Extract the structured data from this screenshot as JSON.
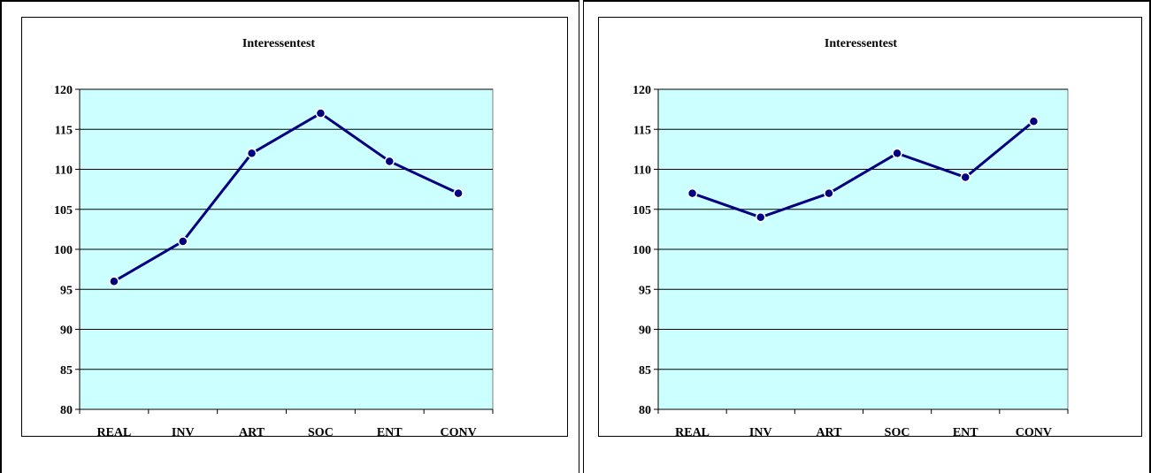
{
  "colors": {
    "plot_background": "#ccffff",
    "line": "#000080",
    "marker_fill": "#000080",
    "marker_edge": "#ffffff",
    "gridline": "#000000"
  },
  "chart_data": [
    {
      "type": "line",
      "title": "Interessentest",
      "categories": [
        "REAL",
        "INV",
        "ART",
        "SOC",
        "ENT",
        "CONV"
      ],
      "series": [
        {
          "values": [
            96,
            101,
            112,
            117,
            111,
            107
          ]
        }
      ],
      "ylim": [
        80,
        120
      ],
      "yticks": [
        80,
        85,
        90,
        95,
        100,
        105,
        110,
        115,
        120
      ],
      "xlabel": "",
      "ylabel": "",
      "grid": true,
      "legend": "none"
    },
    {
      "type": "line",
      "title": "Interessentest",
      "categories": [
        "REAL",
        "INV",
        "ART",
        "SOC",
        "ENT",
        "CONV"
      ],
      "series": [
        {
          "values": [
            107,
            104,
            107,
            112,
            109,
            116
          ]
        }
      ],
      "ylim": [
        80,
        120
      ],
      "yticks": [
        80,
        85,
        90,
        95,
        100,
        105,
        110,
        115,
        120
      ],
      "xlabel": "",
      "ylabel": "",
      "grid": true,
      "legend": "none"
    }
  ]
}
